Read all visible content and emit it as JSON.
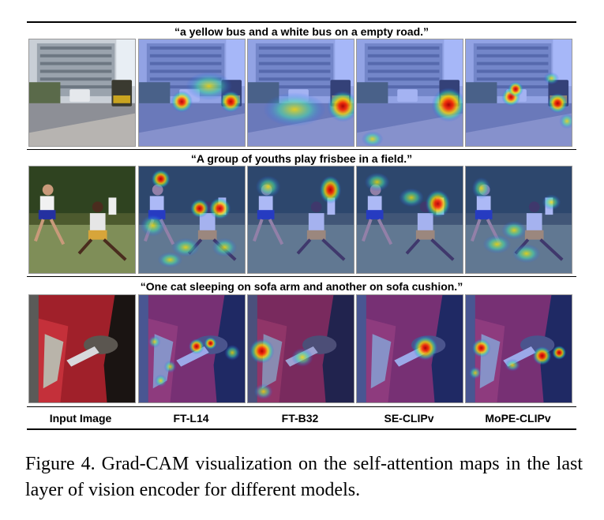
{
  "rows": [
    {
      "caption": "“a yellow bus and a white bus on a empty road.”",
      "scene": "bus"
    },
    {
      "caption": "“A group of youths play frisbee in a field.”",
      "scene": "field"
    },
    {
      "caption": "“One cat sleeping on sofa arm and another on sofa cushion.”",
      "scene": "sofa"
    }
  ],
  "columns": [
    "Input Image",
    "FT-L14",
    "FT-B32",
    "SE-CLIPv",
    "MoPE-CLIPv"
  ],
  "figure_caption": "Figure 4.  Grad-CAM visualization on the self-attention maps in the last layer of vision encoder for different models."
}
